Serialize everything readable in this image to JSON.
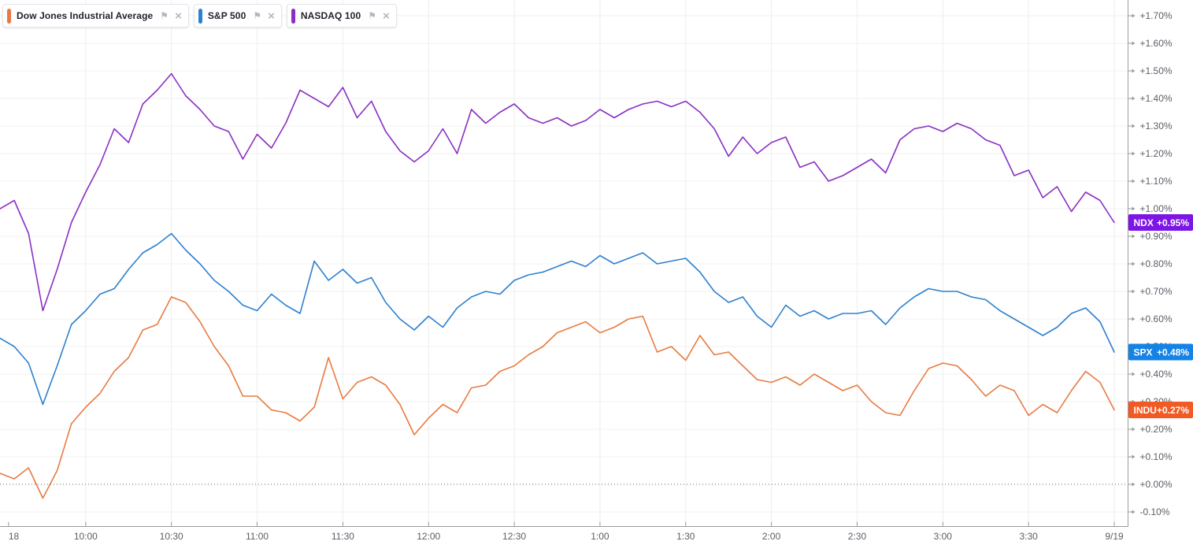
{
  "icons": {
    "flag": "⚑",
    "close": "×"
  },
  "legend": {
    "items": [
      {
        "label": "Dow Jones Industrial Average",
        "color": "#e87b41"
      },
      {
        "label": "S&P 500",
        "color": "#2e80cf"
      },
      {
        "label": "NASDAQ 100",
        "color": "#8a2fc4"
      }
    ]
  },
  "chart_data": {
    "type": "line",
    "x_unit": "minutes since 09:30 on 9/18",
    "x_range_minutes": [
      0,
      390
    ],
    "x_minutes": [
      0,
      5,
      10,
      15,
      20,
      25,
      30,
      35,
      40,
      45,
      50,
      55,
      60,
      65,
      70,
      75,
      80,
      85,
      90,
      95,
      100,
      105,
      110,
      115,
      120,
      125,
      130,
      135,
      140,
      145,
      150,
      155,
      160,
      165,
      170,
      175,
      180,
      185,
      190,
      195,
      200,
      205,
      210,
      215,
      220,
      225,
      230,
      235,
      240,
      245,
      250,
      255,
      260,
      265,
      270,
      275,
      280,
      285,
      290,
      295,
      300,
      305,
      310,
      315,
      320,
      325,
      330,
      335,
      340,
      345,
      350,
      355,
      360,
      365,
      370,
      375,
      380,
      385,
      390
    ],
    "x_axis": {
      "labels": [
        {
          "text": "18",
          "t": 3,
          "gridline": false
        },
        {
          "text": "10:00",
          "t": 30,
          "gridline": true
        },
        {
          "text": "10:30",
          "t": 60,
          "gridline": true
        },
        {
          "text": "11:00",
          "t": 90,
          "gridline": true
        },
        {
          "text": "11:30",
          "t": 120,
          "gridline": true
        },
        {
          "text": "12:00",
          "t": 150,
          "gridline": true
        },
        {
          "text": "12:30",
          "t": 180,
          "gridline": true
        },
        {
          "text": "1:00",
          "t": 210,
          "gridline": true
        },
        {
          "text": "1:30",
          "t": 240,
          "gridline": true
        },
        {
          "text": "2:00",
          "t": 270,
          "gridline": true
        },
        {
          "text": "2:30",
          "t": 300,
          "gridline": true
        },
        {
          "text": "3:00",
          "t": 330,
          "gridline": true
        },
        {
          "text": "3:30",
          "t": 360,
          "gridline": true
        },
        {
          "text": "9/19",
          "t": 390,
          "gridline": true
        }
      ]
    },
    "y_axis": {
      "min": -0.1,
      "max": 1.7,
      "step": 0.1,
      "unit": "%",
      "grid": true,
      "zero_line_value": 0.0,
      "labels": [
        {
          "text": "+1.70%",
          "value": 1.7
        },
        {
          "text": "+1.60%",
          "value": 1.6
        },
        {
          "text": "+1.50%",
          "value": 1.5
        },
        {
          "text": "+1.40%",
          "value": 1.4
        },
        {
          "text": "+1.30%",
          "value": 1.3
        },
        {
          "text": "+1.20%",
          "value": 1.2
        },
        {
          "text": "+1.10%",
          "value": 1.1
        },
        {
          "text": "+1.00%",
          "value": 1.0
        },
        {
          "text": "+0.90%",
          "value": 0.9
        },
        {
          "text": "+0.80%",
          "value": 0.8
        },
        {
          "text": "+0.70%",
          "value": 0.7
        },
        {
          "text": "+0.60%",
          "value": 0.6
        },
        {
          "text": "+0.50%",
          "value": 0.5
        },
        {
          "text": "+0.40%",
          "value": 0.4
        },
        {
          "text": "+0.30%",
          "value": 0.3
        },
        {
          "text": "+0.20%",
          "value": 0.2
        },
        {
          "text": "+0.10%",
          "value": 0.1
        },
        {
          "text": "+0.00%",
          "value": 0.0
        },
        {
          "text": "-0.10%",
          "value": -0.1
        }
      ]
    },
    "legend_position": "top-left",
    "series": [
      {
        "name": "NASDAQ 100",
        "symbol": "NDX",
        "last_change": "+0.95%",
        "color": "#8a2fc4",
        "badge_color": "#7c15e6",
        "values": [
          1.0,
          1.03,
          0.91,
          0.63,
          0.78,
          0.95,
          1.06,
          1.16,
          1.29,
          1.24,
          1.38,
          1.43,
          1.49,
          1.41,
          1.36,
          1.3,
          1.28,
          1.18,
          1.27,
          1.22,
          1.31,
          1.43,
          1.4,
          1.37,
          1.44,
          1.33,
          1.39,
          1.28,
          1.21,
          1.17,
          1.21,
          1.29,
          1.2,
          1.36,
          1.31,
          1.35,
          1.38,
          1.33,
          1.31,
          1.33,
          1.3,
          1.32,
          1.36,
          1.33,
          1.36,
          1.38,
          1.39,
          1.37,
          1.39,
          1.35,
          1.29,
          1.19,
          1.26,
          1.2,
          1.24,
          1.26,
          1.15,
          1.17,
          1.1,
          1.12,
          1.15,
          1.18,
          1.13,
          1.25,
          1.29,
          1.3,
          1.28,
          1.31,
          1.29,
          1.25,
          1.23,
          1.12,
          1.14,
          1.04,
          1.08,
          0.99,
          1.06,
          1.03,
          0.95
        ]
      },
      {
        "name": "S&P 500",
        "symbol": "SPX",
        "last_change": "+0.48%",
        "color": "#2e80cf",
        "badge_color": "#1583e6",
        "values": [
          0.53,
          0.5,
          0.44,
          0.29,
          0.43,
          0.58,
          0.63,
          0.69,
          0.71,
          0.78,
          0.84,
          0.87,
          0.91,
          0.85,
          0.8,
          0.74,
          0.7,
          0.65,
          0.63,
          0.69,
          0.65,
          0.62,
          0.81,
          0.74,
          0.78,
          0.73,
          0.75,
          0.66,
          0.6,
          0.56,
          0.61,
          0.57,
          0.64,
          0.68,
          0.7,
          0.69,
          0.74,
          0.76,
          0.77,
          0.79,
          0.81,
          0.79,
          0.83,
          0.8,
          0.82,
          0.84,
          0.8,
          0.81,
          0.82,
          0.77,
          0.7,
          0.66,
          0.68,
          0.61,
          0.57,
          0.65,
          0.61,
          0.63,
          0.6,
          0.62,
          0.62,
          0.63,
          0.58,
          0.64,
          0.68,
          0.71,
          0.7,
          0.7,
          0.68,
          0.67,
          0.63,
          0.6,
          0.57,
          0.54,
          0.57,
          0.62,
          0.64,
          0.59,
          0.48
        ]
      },
      {
        "name": "Dow Jones Industrial Average",
        "symbol": "INDU",
        "last_change": "+0.27%",
        "color": "#e87b41",
        "badge_color": "#f15b23",
        "values": [
          0.04,
          0.02,
          0.06,
          -0.05,
          0.05,
          0.22,
          0.28,
          0.33,
          0.41,
          0.46,
          0.56,
          0.58,
          0.68,
          0.66,
          0.59,
          0.5,
          0.43,
          0.32,
          0.32,
          0.27,
          0.26,
          0.23,
          0.28,
          0.46,
          0.31,
          0.37,
          0.39,
          0.36,
          0.29,
          0.18,
          0.24,
          0.29,
          0.26,
          0.35,
          0.36,
          0.41,
          0.43,
          0.47,
          0.5,
          0.55,
          0.57,
          0.59,
          0.55,
          0.57,
          0.6,
          0.61,
          0.48,
          0.5,
          0.45,
          0.54,
          0.47,
          0.48,
          0.43,
          0.38,
          0.37,
          0.39,
          0.36,
          0.4,
          0.37,
          0.34,
          0.36,
          0.3,
          0.26,
          0.25,
          0.34,
          0.42,
          0.44,
          0.43,
          0.38,
          0.32,
          0.36,
          0.34,
          0.25,
          0.29,
          0.26,
          0.34,
          0.41,
          0.37,
          0.27
        ]
      }
    ]
  }
}
